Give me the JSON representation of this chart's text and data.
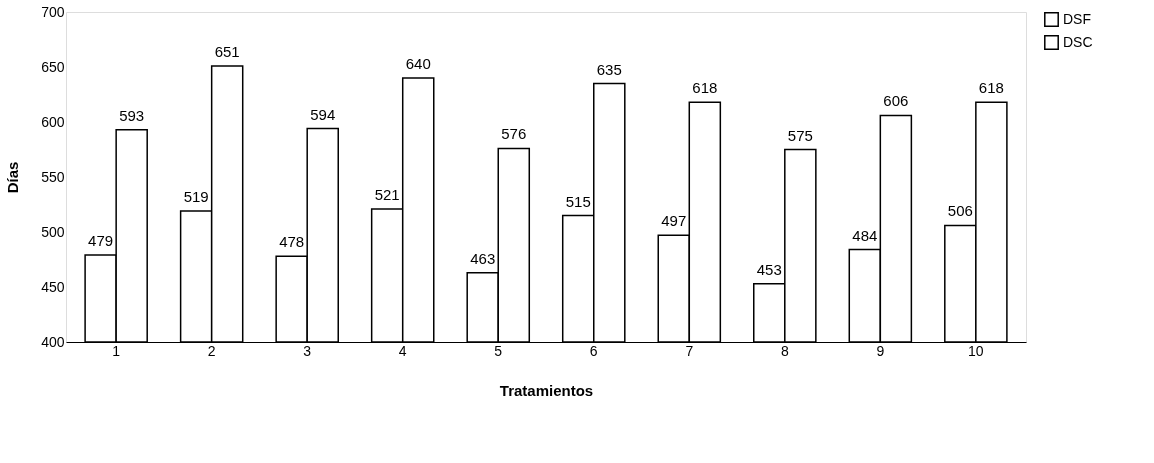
{
  "chart_data": {
    "type": "bar",
    "xlabel": "Tratamientos",
    "ylabel": "Días",
    "categories": [
      "1",
      "2",
      "3",
      "4",
      "5",
      "6",
      "7",
      "8",
      "9",
      "10"
    ],
    "series": [
      {
        "name": "DSF",
        "color": "#ffffff",
        "values": [
          479,
          519,
          478,
          521,
          463,
          515,
          497,
          453,
          484,
          506
        ]
      },
      {
        "name": "DSC",
        "color": "#ffffff",
        "values": [
          593,
          651,
          594,
          640,
          576,
          635,
          618,
          575,
          606,
          618
        ]
      }
    ],
    "ylim": [
      400,
      700
    ],
    "yticks": [
      400,
      450,
      500,
      550,
      600,
      650,
      700
    ],
    "grid": false,
    "legend": "right",
    "data_labels": true
  }
}
